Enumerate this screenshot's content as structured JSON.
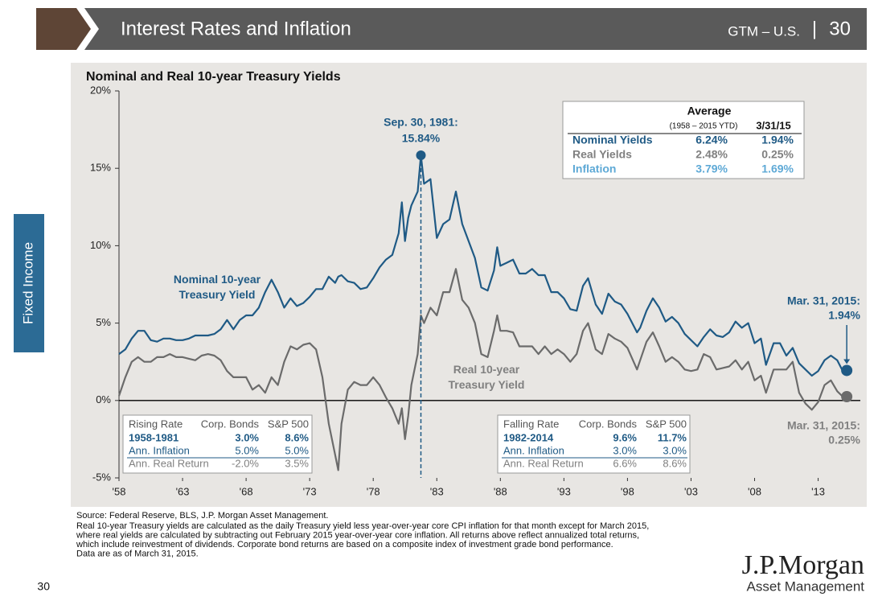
{
  "header": {
    "title": "Interest Rates and Inflation",
    "tag": "GTM – U.S.",
    "separator": "|",
    "page": "30"
  },
  "side_tab": "Fixed Income",
  "chart_data": {
    "type": "line",
    "title": "Nominal and Real 10-year Treasury Yields",
    "x": [
      1958,
      1958.5,
      1959,
      1959.5,
      1960,
      1960.5,
      1961,
      1961.5,
      1962,
      1962.5,
      1963,
      1963.5,
      1964,
      1964.5,
      1965,
      1965.5,
      1966,
      1966.5,
      1967,
      1967.5,
      1968,
      1968.5,
      1969,
      1969.5,
      1970,
      1970.5,
      1971,
      1971.5,
      1972,
      1972.5,
      1973,
      1973.5,
      1974,
      1974.5,
      1975,
      1975.25,
      1975.5,
      1976,
      1976.5,
      1977,
      1977.5,
      1978,
      1978.5,
      1979,
      1979.5,
      1980,
      1980.25,
      1980.5,
      1980.75,
      1981,
      1981.5,
      1981.75,
      1982,
      1982.5,
      1983,
      1983.5,
      1984,
      1984.5,
      1985,
      1985.5,
      1986,
      1986.5,
      1987,
      1987.5,
      1987.75,
      1988,
      1988.5,
      1989,
      1989.5,
      1990,
      1990.5,
      1991,
      1991.5,
      1992,
      1992.5,
      1993,
      1993.5,
      1994,
      1994.5,
      1994.9,
      1995.5,
      1996,
      1996.5,
      1997,
      1997.5,
      1998,
      1998.75,
      1999,
      1999.5,
      2000,
      2000.5,
      2001,
      2001.5,
      2002,
      2002.5,
      2003,
      2003.5,
      2004,
      2004.5,
      2005,
      2005.5,
      2006,
      2006.5,
      2007,
      2007.5,
      2008,
      2008.5,
      2008.9,
      2009.5,
      2010,
      2010.5,
      2011,
      2011.5,
      2012,
      2012.5,
      2013,
      2013.5,
      2014,
      2014.5,
      2015,
      2015.25
    ],
    "series": [
      {
        "name": "Nominal 10-year Treasury Yield",
        "color": "#1f5a85",
        "values": [
          3.0,
          3.3,
          4.0,
          4.5,
          4.5,
          3.9,
          3.8,
          4.0,
          4.0,
          3.9,
          3.9,
          4.0,
          4.2,
          4.2,
          4.2,
          4.3,
          4.6,
          5.2,
          4.6,
          5.2,
          5.5,
          5.5,
          6.0,
          7.0,
          7.8,
          7.0,
          6.0,
          6.6,
          6.1,
          6.3,
          6.7,
          7.2,
          7.2,
          8.0,
          7.6,
          8.0,
          8.1,
          7.7,
          7.6,
          7.2,
          7.3,
          7.9,
          8.6,
          9.1,
          9.4,
          10.8,
          12.8,
          10.3,
          11.8,
          12.6,
          13.5,
          15.84,
          14.0,
          14.3,
          10.5,
          11.4,
          11.7,
          13.5,
          11.4,
          10.3,
          9.2,
          7.3,
          7.1,
          8.4,
          9.9,
          8.7,
          8.9,
          9.1,
          8.2,
          8.2,
          8.5,
          8.1,
          8.1,
          7.0,
          7.0,
          6.6,
          5.9,
          5.8,
          7.4,
          7.9,
          6.2,
          5.6,
          6.9,
          6.4,
          6.2,
          5.6,
          4.4,
          4.7,
          5.8,
          6.6,
          6.0,
          5.1,
          5.4,
          5.0,
          4.3,
          3.9,
          3.5,
          4.1,
          4.6,
          4.2,
          4.1,
          4.4,
          5.1,
          4.7,
          5.0,
          3.7,
          4.0,
          2.3,
          3.7,
          3.7,
          2.9,
          3.4,
          2.4,
          2.0,
          1.6,
          1.9,
          2.6,
          2.9,
          2.6,
          1.8,
          1.94
        ]
      },
      {
        "name": "Real 10-year Treasury Yield",
        "color": "#6b6b6b",
        "values": [
          0.3,
          1.5,
          2.5,
          2.8,
          2.5,
          2.5,
          2.8,
          2.8,
          3.0,
          2.8,
          2.8,
          2.7,
          2.6,
          2.9,
          3.0,
          2.9,
          2.6,
          1.9,
          1.5,
          1.5,
          1.5,
          0.7,
          1.0,
          0.5,
          1.5,
          1.0,
          2.5,
          3.5,
          3.3,
          3.6,
          3.7,
          3.3,
          1.5,
          -1.5,
          -3.5,
          -4.5,
          -1.5,
          0.7,
          1.2,
          1.0,
          1.0,
          1.5,
          1.0,
          0.2,
          -0.5,
          -1.5,
          -0.5,
          -2.5,
          -1.0,
          1.0,
          3.0,
          5.5,
          5.0,
          6.0,
          5.5,
          7.0,
          7.0,
          8.5,
          6.5,
          6.0,
          5.0,
          3.0,
          2.8,
          4.5,
          5.5,
          4.5,
          4.5,
          4.4,
          3.5,
          3.5,
          3.5,
          3.0,
          3.5,
          3.0,
          3.3,
          3.0,
          2.5,
          3.0,
          4.5,
          5.0,
          3.3,
          3.0,
          4.3,
          4.0,
          3.8,
          3.4,
          2.0,
          2.6,
          3.8,
          4.4,
          3.5,
          2.5,
          2.8,
          2.5,
          2.0,
          1.9,
          2.0,
          3.0,
          2.8,
          2.0,
          2.1,
          2.2,
          2.6,
          2.0,
          2.5,
          1.3,
          1.6,
          0.5,
          2.0,
          2.0,
          2.0,
          2.5,
          0.5,
          -0.2,
          -0.6,
          -0.1,
          1.0,
          1.3,
          0.6,
          0.2,
          0.25
        ]
      }
    ],
    "xlim": [
      1958,
      2016
    ],
    "xticks": [
      {
        "value": 1958,
        "label": "'58"
      },
      {
        "value": 1963,
        "label": "'63"
      },
      {
        "value": 1968,
        "label": "'68"
      },
      {
        "value": 1973,
        "label": "'73"
      },
      {
        "value": 1978,
        "label": "'78"
      },
      {
        "value": 1983,
        "label": "'83"
      },
      {
        "value": 1988,
        "label": "'88"
      },
      {
        "value": 1993,
        "label": "'93"
      },
      {
        "value": 1998,
        "label": "'98"
      },
      {
        "value": 2003,
        "label": "'03"
      },
      {
        "value": 2008,
        "label": "'08"
      },
      {
        "value": 2013,
        "label": "'13"
      }
    ],
    "ylim": [
      -5,
      20
    ],
    "yticks": [
      {
        "value": -5,
        "label": "-5%"
      },
      {
        "value": 0,
        "label": "0%"
      },
      {
        "value": 5,
        "label": "5%"
      },
      {
        "value": 10,
        "label": "10%"
      },
      {
        "value": 15,
        "label": "15%"
      },
      {
        "value": 20,
        "label": "20%"
      }
    ],
    "grid": false,
    "annotations": [
      {
        "date": "Sep. 30, 1981:",
        "x": 1981.75,
        "y": 15.84,
        "label": "15.84%"
      },
      {
        "date": "Mar. 31, 2015:",
        "x": 2015.25,
        "y": 1.94,
        "label": "1.94%"
      },
      {
        "date": "Mar. 31, 2015:",
        "x": 2015.25,
        "y": 0.25,
        "label": "0.25%"
      }
    ],
    "average_table": {
      "title": "Average",
      "columns": [
        "(1958 – 2015 YTD)",
        "3/31/15"
      ],
      "rows": [
        {
          "label": "Nominal Yields",
          "values": [
            "6.24%",
            "1.94%"
          ]
        },
        {
          "label": "Real Yields",
          "values": [
            "2.48%",
            "0.25%"
          ]
        },
        {
          "label": "Inflation",
          "values": [
            "3.79%",
            "1.69%"
          ]
        }
      ]
    },
    "rising_table": {
      "columns": [
        "Rising Rate",
        "Corp. Bonds",
        "S&P 500"
      ],
      "rows": [
        [
          "1958-1981",
          "3.0%",
          "8.6%"
        ],
        [
          "Ann. Inflation",
          "5.0%",
          "5.0%"
        ],
        [
          "Ann. Real Return",
          "-2.0%",
          "3.5%"
        ]
      ]
    },
    "falling_table": {
      "columns": [
        "Falling Rate",
        "Corp. Bonds",
        "S&P 500"
      ],
      "rows": [
        [
          "1982-2014",
          "9.6%",
          "11.7%"
        ],
        [
          "Ann. Inflation",
          "3.0%",
          "3.0%"
        ],
        [
          "Ann. Real Return",
          "6.6%",
          "8.6%"
        ]
      ]
    }
  },
  "footer": {
    "source": "Source: Federal Reserve, BLS, J.P. Morgan Asset Management.",
    "notes": [
      "Real 10-year Treasury yields are calculated as the daily Treasury yield less year-over-year core CPI inflation for that month except for March 2015,",
      "where real yields are calculated by subtracting out February 2015 year-over-year core inflation. All returns above reflect annualized total returns,",
      "which include reinvestment of dividends. Corporate bond returns are based on a composite index of investment grade bond performance.",
      "Data are as of March 31, 2015."
    ],
    "page_number": "30",
    "logo": "J.P.Morgan",
    "logo_sub": "Asset Management"
  }
}
